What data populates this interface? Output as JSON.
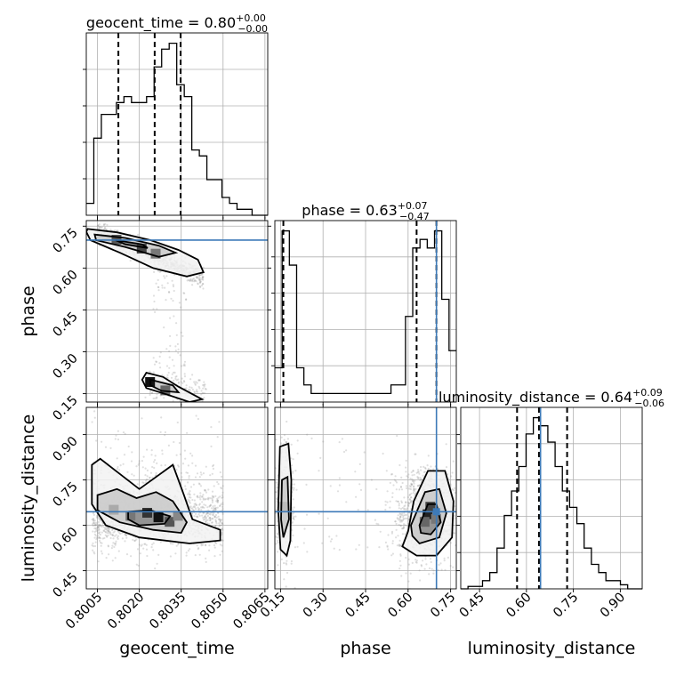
{
  "chart_data": {
    "type": "corner",
    "parameters": [
      "geocent_time",
      "phase",
      "luminosity_distance"
    ],
    "truths": {
      "geocent_time": null,
      "phase": 0.7,
      "luminosity_distance": 0.645
    },
    "color_accent": "#3d7ab8",
    "diagonal": [
      {
        "param": "geocent_time",
        "title_main": "geocent_time = 0.80",
        "title_sup": "+0.00",
        "title_sub": "−0.00",
        "range": [
          0.8001,
          0.8066
        ],
        "quantiles": [
          0.80125,
          0.80255,
          0.80348
        ],
        "bin_edges": [
          0.8001,
          0.80037,
          0.80064,
          0.80091,
          0.80118,
          0.80145,
          0.80172,
          0.80199,
          0.80226,
          0.80253,
          0.8028,
          0.80307,
          0.80334,
          0.80361,
          0.80388,
          0.80415,
          0.80442,
          0.80469,
          0.80496,
          0.80523,
          0.8055,
          0.80577,
          0.80604,
          0.80631,
          0.8066
        ],
        "counts": [
          2,
          13,
          17,
          17,
          19,
          20,
          19,
          19,
          20,
          25,
          28,
          29,
          22,
          20,
          11,
          10,
          6,
          6,
          3,
          2,
          1,
          1,
          0,
          0
        ]
      },
      {
        "param": "phase",
        "title_main": "phase = 0.63",
        "title_sup": "+0.07",
        "title_sub": "−0.47",
        "range": [
          0.13,
          0.77
        ],
        "quantiles": [
          0.16,
          0.63,
          0.7
        ],
        "bin_edges": [
          0.13,
          0.1556,
          0.1812,
          0.2068,
          0.2324,
          0.258,
          0.2836,
          0.3092,
          0.3348,
          0.3604,
          0.386,
          0.4116,
          0.4372,
          0.4628,
          0.4884,
          0.514,
          0.5396,
          0.5652,
          0.5908,
          0.6164,
          0.642,
          0.6676,
          0.6932,
          0.7188,
          0.7444,
          0.77
        ],
        "counts": [
          2,
          10,
          8,
          2,
          1,
          0.5,
          0.5,
          0.5,
          0.5,
          0.5,
          0.5,
          0.5,
          0.5,
          0.5,
          0.5,
          0.5,
          1,
          1,
          5,
          9,
          9.5,
          9,
          10,
          6,
          3
        ]
      },
      {
        "param": "luminosity_distance",
        "title_main": "luminosity_distance = 0.64",
        "title_sup": "+0.09",
        "title_sub": "−0.06",
        "range": [
          0.39,
          0.97
        ],
        "quantiles": [
          0.57,
          0.64,
          0.73
        ],
        "bin_edges": [
          0.39,
          0.4132,
          0.4364,
          0.4596,
          0.4828,
          0.506,
          0.5292,
          0.5524,
          0.5756,
          0.5988,
          0.622,
          0.6452,
          0.6684,
          0.6916,
          0.7148,
          0.738,
          0.7612,
          0.7844,
          0.8076,
          0.8308,
          0.854,
          0.8772,
          0.9004,
          0.9236,
          0.9468,
          0.97
        ],
        "counts": [
          0,
          0.3,
          0.3,
          1,
          2,
          5,
          9,
          12,
          15,
          19,
          21,
          20,
          18,
          15,
          12,
          10,
          8,
          5,
          3,
          2,
          1,
          1,
          0.5,
          0,
          0
        ]
      }
    ],
    "scatter": [
      {
        "x": "geocent_time",
        "y": "phase",
        "xrange": [
          0.8001,
          0.8066
        ],
        "yrange": [
          0.12,
          0.77
        ]
      },
      {
        "x": "geocent_time",
        "y": "luminosity_distance",
        "xrange": [
          0.8001,
          0.8066
        ],
        "yrange": [
          0.39,
          0.99
        ]
      },
      {
        "x": "phase",
        "y": "luminosity_distance",
        "xrange": [
          0.13,
          0.77
        ],
        "yrange": [
          0.39,
          0.99
        ]
      }
    ],
    "axes": {
      "geocent_time": {
        "ticks": [
          0.8005,
          0.802,
          0.8035,
          0.805,
          0.8065
        ],
        "ticklabels": [
          "0.8005",
          "0.8020",
          "0.8035",
          "0.8050",
          "0.8065"
        ],
        "label": "geocent_time"
      },
      "phase": {
        "ticks": [
          0.15,
          0.3,
          0.45,
          0.6,
          0.75
        ],
        "ticklabels": [
          "0.15",
          "0.30",
          "0.45",
          "0.60",
          "0.75"
        ],
        "label": "phase"
      },
      "luminosity_distance": {
        "ticks": [
          0.45,
          0.6,
          0.75,
          0.9
        ],
        "ticklabels": [
          "0.45",
          "0.60",
          "0.75",
          "0.90"
        ],
        "label": "luminosity_distance"
      }
    }
  }
}
